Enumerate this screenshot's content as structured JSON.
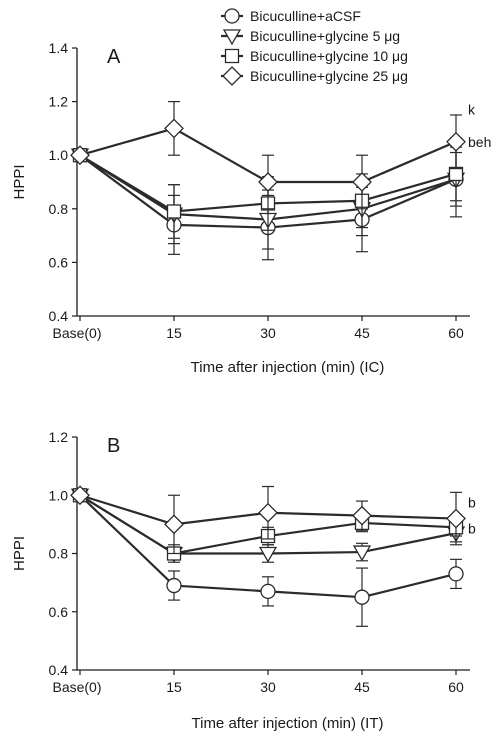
{
  "legend": [
    {
      "label": "Bicuculline+aCSF",
      "marker": "circle"
    },
    {
      "label": "Bicuculline+glycine 5 μg",
      "marker": "triangle-down"
    },
    {
      "label": "Bicuculline+glycine 10 μg",
      "marker": "square"
    },
    {
      "label": "Bicuculline+glycine 25 μg",
      "marker": "diamond"
    }
  ],
  "chart_data": [
    {
      "type": "line",
      "panel_label": "A",
      "categories": [
        "Base(0)",
        "15",
        "30",
        "45",
        "60"
      ],
      "xlabel": "Time after injection (min) (IC)",
      "ylabel": "HPPI",
      "ylim": [
        0.4,
        1.4
      ],
      "yticks": [
        "0.4",
        "0.6",
        "0.8",
        "1.0",
        "1.2",
        "1.4"
      ],
      "grid": false,
      "legend_position": "top-right",
      "series": [
        {
          "name": "Bicuculline+aCSF",
          "marker": "circle",
          "values": [
            1.0,
            0.74,
            0.73,
            0.76,
            0.91
          ],
          "err": [
            0,
            0.11,
            0.12,
            0.12,
            0.14
          ]
        },
        {
          "name": "Bicuculline+glycine 5 μg",
          "marker": "triangle-down",
          "values": [
            1.0,
            0.78,
            0.76,
            0.8,
            0.91
          ],
          "err": [
            0,
            0.11,
            0.11,
            0.1,
            0.1
          ]
        },
        {
          "name": "Bicuculline+glycine 10 μg",
          "marker": "square",
          "values": [
            1.0,
            0.79,
            0.82,
            0.83,
            0.93
          ],
          "err": [
            0,
            0.1,
            0.1,
            0.1,
            0.1
          ]
        },
        {
          "name": "Bicuculline+glycine 25 μg",
          "marker": "diamond",
          "values": [
            1.0,
            1.1,
            0.9,
            0.9,
            1.05
          ],
          "err": [
            0,
            0.1,
            0.1,
            0.1,
            0.1
          ]
        }
      ],
      "annotations": [
        {
          "text": "k",
          "category": "60",
          "y": 1.17
        },
        {
          "text": "beh",
          "category": "60",
          "y": 1.05
        }
      ]
    },
    {
      "type": "line",
      "panel_label": "B",
      "categories": [
        "Base(0)",
        "15",
        "30",
        "45",
        "60"
      ],
      "xlabel": "Time after injection (min) (IT)",
      "ylabel": "HPPI",
      "ylim": [
        0.4,
        1.2
      ],
      "yticks": [
        "0.4",
        "0.6",
        "0.8",
        "1.0",
        "1.2"
      ],
      "grid": false,
      "series": [
        {
          "name": "Bicuculline+aCSF",
          "marker": "circle",
          "values": [
            1.0,
            0.69,
            0.67,
            0.65,
            0.73
          ],
          "err": [
            0,
            0.05,
            0.05,
            0.1,
            0.05
          ]
        },
        {
          "name": "Bicuculline+glycine 5 μg",
          "marker": "triangle-down",
          "values": [
            1.0,
            0.8,
            0.8,
            0.805,
            0.87
          ],
          "err": [
            0,
            0.03,
            0.03,
            0.03,
            0.03
          ]
        },
        {
          "name": "Bicuculline+glycine 10 μg",
          "marker": "square",
          "values": [
            1.0,
            0.8,
            0.86,
            0.905,
            0.89
          ],
          "err": [
            0,
            0.02,
            0.03,
            0.03,
            0.03
          ]
        },
        {
          "name": "Bicuculline+glycine 25 μg",
          "marker": "diamond",
          "values": [
            1.0,
            0.9,
            0.94,
            0.93,
            0.92
          ],
          "err": [
            0,
            0.1,
            0.09,
            0.05,
            0.09
          ]
        }
      ],
      "annotations": [
        {
          "text": "b",
          "category": "60",
          "y": 0.975
        },
        {
          "text": "b",
          "category": "60",
          "y": 0.885
        }
      ]
    }
  ]
}
